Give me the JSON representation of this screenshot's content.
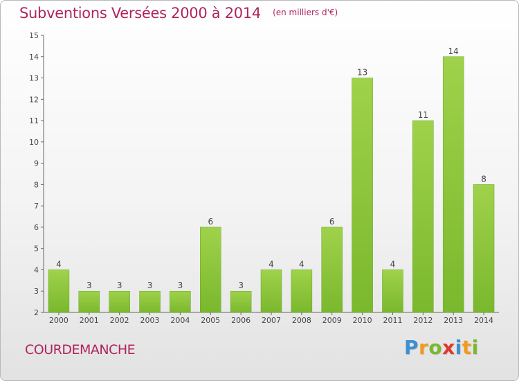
{
  "chart_data": {
    "type": "bar",
    "title": "Subventions Versées 2000 à 2014",
    "subtitle": "(en milliers d'€)",
    "categories": [
      "2000",
      "2001",
      "2002",
      "2003",
      "2004",
      "2005",
      "2006",
      "2007",
      "2008",
      "2009",
      "2010",
      "2011",
      "2012",
      "2013",
      "2014"
    ],
    "values": [
      4,
      3,
      3,
      3,
      3,
      6,
      3,
      4,
      4,
      6,
      13,
      4,
      11,
      14,
      8
    ],
    "ylim": [
      2,
      15
    ],
    "yticks": [
      2,
      3,
      4,
      5,
      6,
      7,
      8,
      9,
      10,
      11,
      12,
      13,
      14,
      15
    ],
    "grid": false,
    "bar_color": "#7ab82e",
    "bar_color_light": "#9fd24a",
    "text_color": "#b0245e"
  },
  "footer": {
    "commune": "COURDEMANCHE",
    "logo_letters": [
      "P",
      "r",
      "o",
      "x",
      "i",
      "t",
      "i"
    ],
    "logo_colors": [
      "#3d8fd1",
      "#f29a1f",
      "#7ab82e",
      "#e0372d",
      "#3d8fd1",
      "#f29a1f",
      "#7ab82e"
    ]
  }
}
